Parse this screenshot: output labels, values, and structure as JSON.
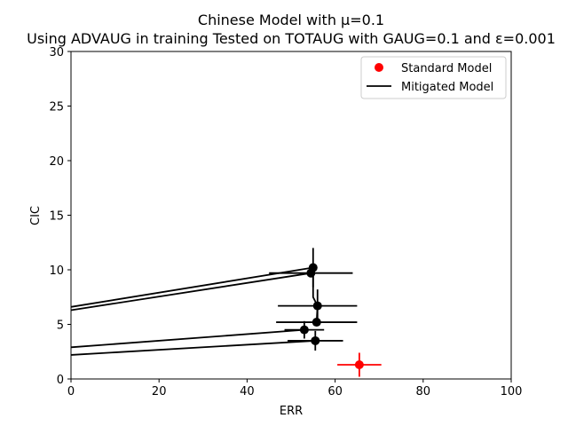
{
  "chart_data": {
    "type": "scatter",
    "title": "Chinese Model with μ=0.1",
    "subtitle": "Using ADVAUG in training Tested on TOTAUG with GAUG=0.1 and ε=0.001",
    "xlabel": "ERR",
    "ylabel": "CIC",
    "xlim": [
      0,
      100
    ],
    "ylim": [
      0,
      30
    ],
    "xticks": [
      0,
      20,
      40,
      60,
      80,
      100
    ],
    "yticks": [
      0,
      5,
      10,
      15,
      20,
      25,
      30
    ],
    "grid": false,
    "legend_position": "top-right",
    "colors": {
      "standard": "#ff0000",
      "mitigated": "#000000"
    },
    "series": [
      {
        "name": "Standard Model",
        "marker": "point",
        "points": [
          {
            "x": 65.5,
            "y": 1.3,
            "xerr": 5,
            "yerr": 1.1
          }
        ]
      },
      {
        "name": "Mitigated Model",
        "marker": "line",
        "points": [
          {
            "x": 55.0,
            "y": 10.2,
            "xerr": 0,
            "yerr": 1.8
          },
          {
            "x": 54.5,
            "y": 9.7,
            "xerr": 9.5,
            "yerr": 0
          },
          {
            "x": 56.0,
            "y": 6.7,
            "xerr": 9.0,
            "yerr": 1.5
          },
          {
            "x": 55.8,
            "y": 5.2,
            "xerr": 9.2,
            "yerr": 0
          },
          {
            "x": 53.0,
            "y": 4.5,
            "xerr": 4.5,
            "yerr": 0.8
          },
          {
            "x": 55.5,
            "y": 3.5,
            "xerr": 6.3,
            "yerr": 0.9
          }
        ],
        "connector": [
          [
            54.5,
            9.7
          ],
          [
            55.0,
            10.2
          ],
          [
            55.0,
            7.5
          ],
          [
            56.0,
            6.7
          ],
          [
            55.8,
            5.2
          ]
        ],
        "trend_lines": [
          [
            [
              0,
              6.6
            ],
            [
              55.0,
              10.2
            ]
          ],
          [
            [
              0,
              6.3
            ],
            [
              54.5,
              9.7
            ]
          ],
          [
            [
              0,
              2.9
            ],
            [
              53.0,
              4.5
            ]
          ],
          [
            [
              0,
              2.2
            ],
            [
              55.5,
              3.5
            ]
          ]
        ]
      }
    ]
  }
}
